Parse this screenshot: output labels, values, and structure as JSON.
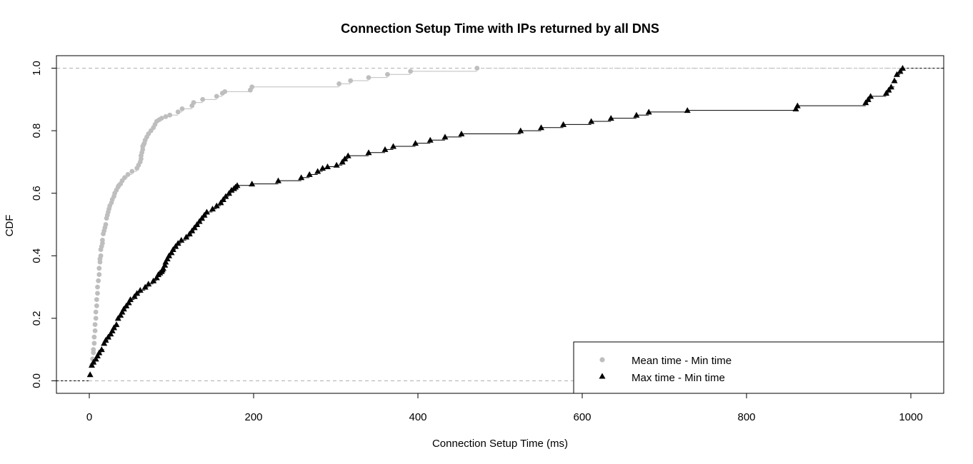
{
  "chart_data": {
    "type": "line",
    "title": "Connection Setup Time with IPs returned by all DNS",
    "xlabel": "Connection Setup Time (ms)",
    "ylabel": "CDF",
    "xlim": [
      -40,
      1040
    ],
    "ylim": [
      -0.04,
      1.04
    ],
    "x_ticks": [
      "0",
      "200",
      "400",
      "600",
      "800",
      "1000"
    ],
    "y_ticks": [
      "0.0",
      "0.2",
      "0.4",
      "0.6",
      "0.8",
      "1.0"
    ],
    "reference_lines": [
      0,
      1
    ],
    "legend_position": "bottom-right",
    "series": [
      {
        "name": "Mean time - Min time",
        "color": "#bebebe",
        "marker": "circle",
        "x": [
          3,
          4,
          5,
          5,
          6,
          6,
          7,
          7,
          8,
          8,
          9,
          9,
          10,
          10,
          11,
          12,
          12,
          13,
          13,
          14,
          14,
          15,
          16,
          16,
          17,
          18,
          19,
          20,
          21,
          22,
          23,
          24,
          25,
          27,
          28,
          30,
          31,
          33,
          35,
          36,
          38,
          40,
          43,
          47,
          52,
          58,
          60,
          62,
          63,
          63,
          64,
          65,
          65,
          66,
          67,
          68,
          70,
          72,
          75,
          78,
          80,
          82,
          85,
          88,
          93,
          98,
          108,
          113,
          125,
          127,
          138,
          155,
          162,
          165,
          196,
          198,
          304,
          318,
          340,
          363,
          391,
          472
        ],
        "y": [
          0.05,
          0.07,
          0.09,
          0.1,
          0.12,
          0.14,
          0.16,
          0.18,
          0.2,
          0.22,
          0.24,
          0.26,
          0.28,
          0.3,
          0.32,
          0.34,
          0.36,
          0.38,
          0.39,
          0.4,
          0.42,
          0.43,
          0.44,
          0.45,
          0.47,
          0.48,
          0.49,
          0.5,
          0.52,
          0.53,
          0.54,
          0.55,
          0.56,
          0.57,
          0.58,
          0.59,
          0.6,
          0.61,
          0.62,
          0.625,
          0.63,
          0.64,
          0.65,
          0.66,
          0.67,
          0.68,
          0.69,
          0.7,
          0.71,
          0.72,
          0.73,
          0.74,
          0.75,
          0.755,
          0.76,
          0.77,
          0.78,
          0.79,
          0.8,
          0.81,
          0.82,
          0.83,
          0.835,
          0.84,
          0.845,
          0.85,
          0.86,
          0.87,
          0.88,
          0.89,
          0.9,
          0.91,
          0.92,
          0.925,
          0.93,
          0.94,
          0.95,
          0.96,
          0.97,
          0.98,
          0.99,
          1.0
        ]
      },
      {
        "name": "Max time - Min time",
        "color": "#000000",
        "marker": "triangle",
        "x": [
          1,
          3,
          5,
          8,
          10,
          12,
          15,
          18,
          20,
          23,
          26,
          28,
          30,
          33,
          35,
          38,
          40,
          42,
          45,
          48,
          50,
          55,
          58,
          62,
          68,
          72,
          78,
          82,
          84,
          86,
          88,
          89,
          90,
          92,
          93,
          95,
          97,
          100,
          102,
          105,
          108,
          112,
          118,
          122,
          125,
          128,
          131,
          134,
          137,
          140,
          143,
          150,
          155,
          160,
          163,
          166,
          170,
          173,
          176,
          178,
          180,
          198,
          230,
          258,
          268,
          278,
          284,
          290,
          301,
          308,
          311,
          315,
          340,
          360,
          370,
          397,
          415,
          433,
          453,
          525,
          550,
          577,
          611,
          635,
          666,
          681,
          728,
          860,
          862,
          945,
          948,
          951,
          970,
          973,
          976,
          980,
          983,
          987,
          990
        ],
        "y": [
          0.02,
          0.05,
          0.06,
          0.07,
          0.08,
          0.09,
          0.1,
          0.12,
          0.13,
          0.14,
          0.15,
          0.16,
          0.17,
          0.18,
          0.2,
          0.21,
          0.22,
          0.23,
          0.24,
          0.25,
          0.26,
          0.27,
          0.28,
          0.29,
          0.3,
          0.31,
          0.32,
          0.33,
          0.34,
          0.345,
          0.35,
          0.355,
          0.36,
          0.37,
          0.38,
          0.39,
          0.4,
          0.41,
          0.42,
          0.43,
          0.44,
          0.45,
          0.46,
          0.47,
          0.48,
          0.49,
          0.5,
          0.51,
          0.52,
          0.53,
          0.54,
          0.55,
          0.56,
          0.57,
          0.58,
          0.59,
          0.6,
          0.61,
          0.615,
          0.62,
          0.625,
          0.63,
          0.64,
          0.65,
          0.66,
          0.67,
          0.68,
          0.685,
          0.69,
          0.7,
          0.71,
          0.72,
          0.73,
          0.74,
          0.75,
          0.76,
          0.77,
          0.78,
          0.79,
          0.8,
          0.81,
          0.82,
          0.83,
          0.84,
          0.85,
          0.86,
          0.865,
          0.87,
          0.88,
          0.89,
          0.9,
          0.91,
          0.92,
          0.93,
          0.94,
          0.96,
          0.98,
          0.99,
          1.0
        ]
      }
    ]
  }
}
